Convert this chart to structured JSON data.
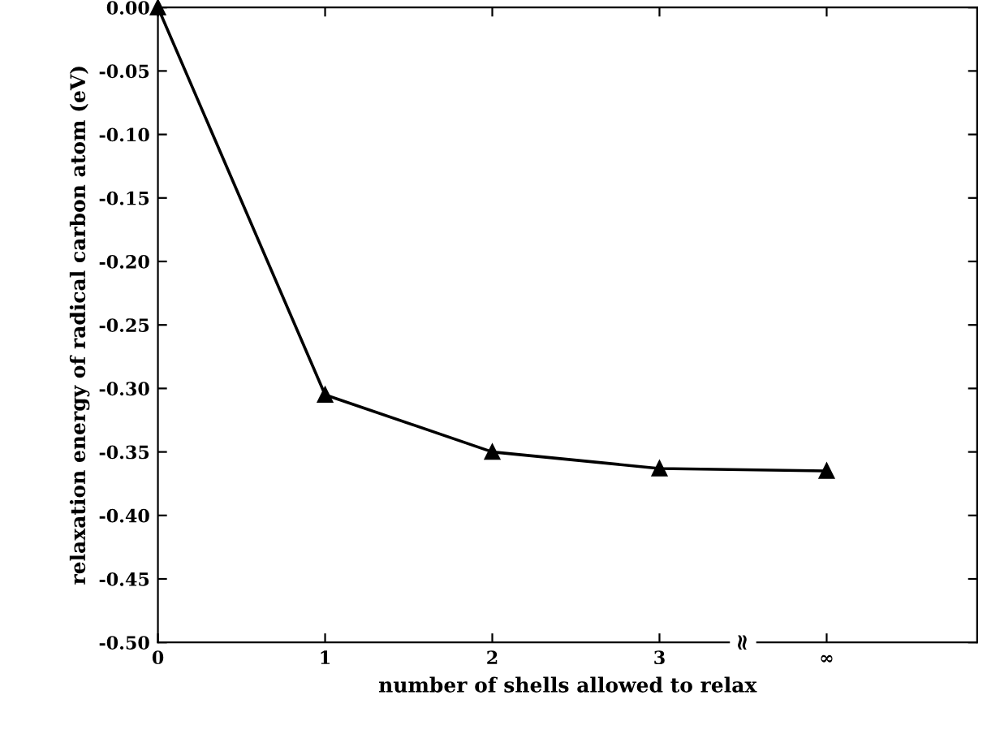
{
  "chart_data": {
    "type": "line",
    "xlabel": "number of shells allowed to relax",
    "ylabel": "relaxation energy of radical carbon atom (eV)",
    "x": [
      0,
      1,
      2,
      3,
      4
    ],
    "series": [
      {
        "color": "#000000",
        "values": [
          0.0,
          -0.305,
          -0.35,
          -0.363,
          -0.365
        ]
      }
    ],
    "marker": "triangle",
    "line_style": "solid",
    "grid": false,
    "legend": false,
    "xlim": [
      0,
      4.9
    ],
    "xticks": [
      0,
      1,
      2,
      3,
      {
        "value": 4,
        "label": "∞"
      }
    ],
    "ylim": [
      -0.5,
      0.0
    ],
    "yticks": [
      {
        "value": -0.5,
        "label": "-0.50"
      },
      {
        "value": -0.45,
        "label": "-0.45"
      },
      {
        "value": -0.4,
        "label": "-0.40"
      },
      {
        "value": -0.35,
        "label": "-0.35"
      },
      {
        "value": -0.3,
        "label": "-0.30"
      },
      {
        "value": -0.25,
        "label": "-0.25"
      },
      {
        "value": -0.2,
        "label": "-0.20"
      },
      {
        "value": -0.15,
        "label": "-0.15"
      },
      {
        "value": -0.1,
        "label": "-0.10"
      },
      {
        "value": -0.05,
        "label": "-0.05"
      },
      {
        "value": 0.0,
        "label": "0.00"
      }
    ],
    "annotations": [
      {
        "text": "≈",
        "x": 3.5,
        "y": -0.5
      }
    ]
  }
}
